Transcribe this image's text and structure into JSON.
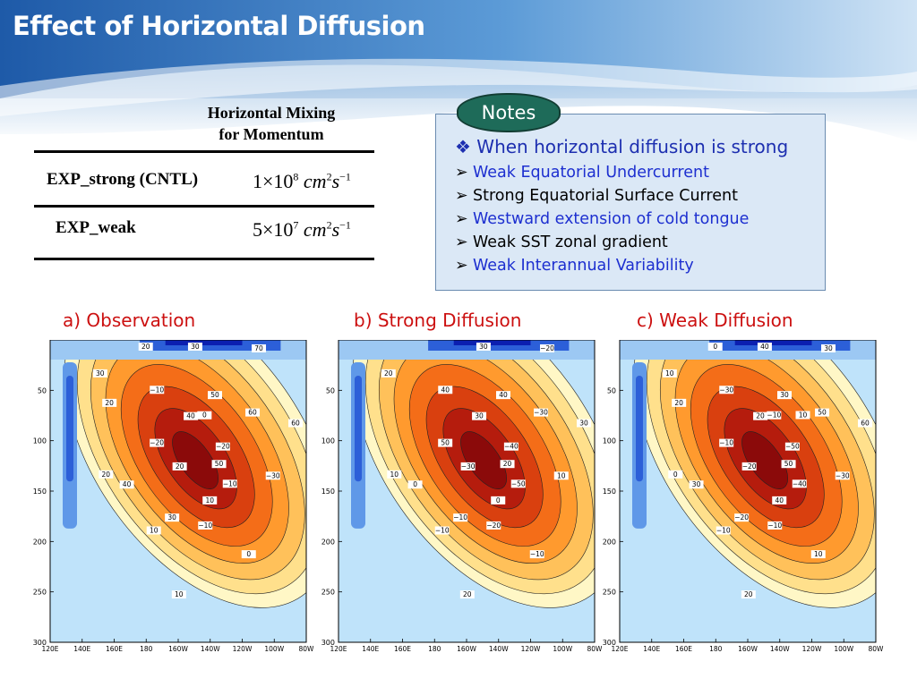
{
  "slide": {
    "title": "Effect of Horizontal Diffusion"
  },
  "table": {
    "header_line1": "Horizontal Mixing",
    "header_line2": "for Momentum",
    "rows": [
      {
        "label": "EXP_strong (CNTL)",
        "coef": "1",
        "exp_base": "10",
        "exp_power": "8",
        "unit1": "cm",
        "unit1_power": "2",
        "unit2": "s",
        "unit2_power": "−1"
      },
      {
        "label": "EXP_weak",
        "coef": "5",
        "exp_base": "10",
        "exp_power": "7",
        "unit1": "cm",
        "unit1_power": "2",
        "unit2": "s",
        "unit2_power": "−1"
      }
    ]
  },
  "notes": {
    "tab_label": "Notes",
    "heading": "When horizontal diffusion is strong",
    "items": [
      {
        "text": "Weak Equatorial Undercurrent",
        "color": "#1d2fd0"
      },
      {
        "text": "Strong Equatorial Surface Current",
        "color": "#000000"
      },
      {
        "text": "Westward extension of cold tongue",
        "color": "#1d2fd0"
      },
      {
        "text": "Weak SST zonal gradient",
        "color": "#000000"
      },
      {
        "text": "Weak Interannual Variability",
        "color": "#1d2fd0"
      }
    ]
  },
  "panels": [
    {
      "caption": "a) Observation"
    },
    {
      "caption": "b) Strong Diffusion"
    },
    {
      "caption": "c) Weak Diffusion"
    }
  ],
  "axes": {
    "x_ticks": [
      "120E",
      "140E",
      "160E",
      "180",
      "160W",
      "140W",
      "120W",
      "100W",
      "80W"
    ],
    "y_ticks": [
      "50",
      "100",
      "150",
      "200",
      "250",
      "300"
    ]
  },
  "contour_labels": {
    "a": [
      "−20",
      "−10",
      "−10",
      "10",
      "20",
      "30",
      "40",
      "50",
      "60",
      "−30",
      "0",
      "10",
      "20",
      "−20",
      "−10",
      "30",
      "70",
      "60",
      "50",
      "10",
      "30",
      "40",
      "20",
      "20",
      "0"
    ],
    "b": [
      "−40",
      "−50",
      "−20",
      "−10",
      "10",
      "20",
      "30",
      "40",
      "−30",
      "10",
      "−10",
      "20",
      "−30",
      "50",
      "40",
      "30",
      "−20",
      "30",
      "20",
      "0",
      "−10",
      "0"
    ],
    "c": [
      "−50",
      "−40",
      "−10",
      "−10",
      "0",
      "10",
      "20",
      "30",
      "50",
      "−30",
      "10",
      "20",
      "−20",
      "−10",
      "−30",
      "40",
      "30",
      "60",
      "50",
      "40",
      "−20",
      "30",
      "20",
      "0",
      "−10",
      "10"
    ]
  },
  "colors": {
    "title_bg": "#2a6bb3",
    "warm_scale": [
      "#fff7c6",
      "#ffe08c",
      "#ffc15a",
      "#ff9a2e",
      "#f46d18",
      "#d9400f",
      "#b51c0d",
      "#8b0a0a"
    ],
    "cool_scale": [
      "#c9e8fb",
      "#9cc8f3",
      "#5f98e8",
      "#2c5fd8",
      "#0b1fb0"
    ],
    "notes_tab": "#1e6b59",
    "caption": "#cc1010"
  }
}
